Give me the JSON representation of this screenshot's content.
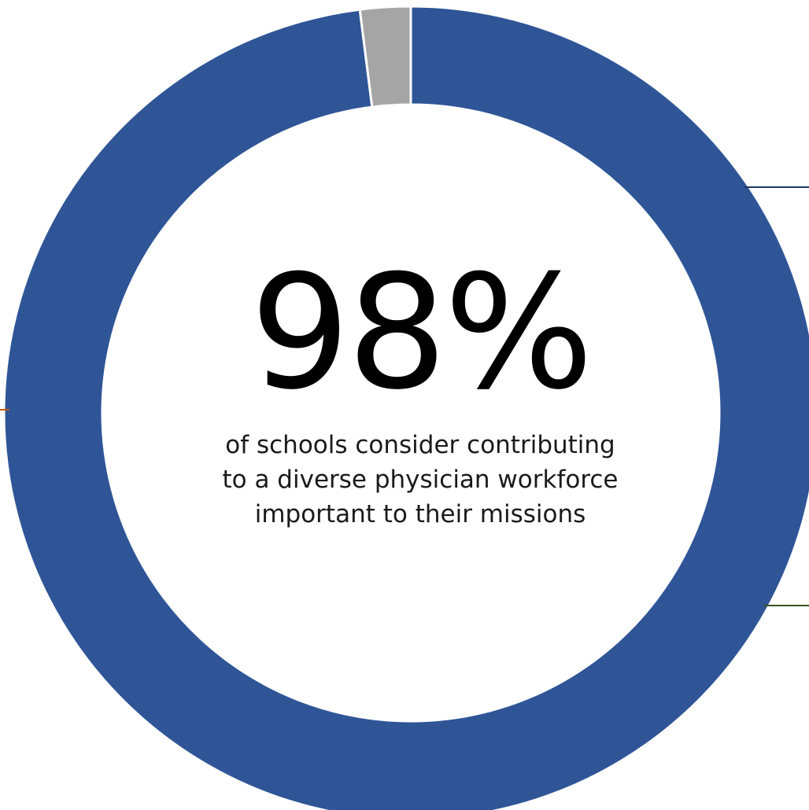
{
  "chart_data": {
    "type": "pie",
    "style": "donut",
    "slices": [
      {
        "value": 98,
        "color": "#2f5597"
      },
      {
        "value": 2,
        "color": "#a5a5a5"
      }
    ],
    "center_value": "98%",
    "center_caption_lines": [
      "of schools consider contributing",
      "to a diverse physician workforce",
      "important to their missions"
    ],
    "leader_line_colors": [
      "#1f3864",
      "#c55a11",
      "#385723"
    ]
  }
}
